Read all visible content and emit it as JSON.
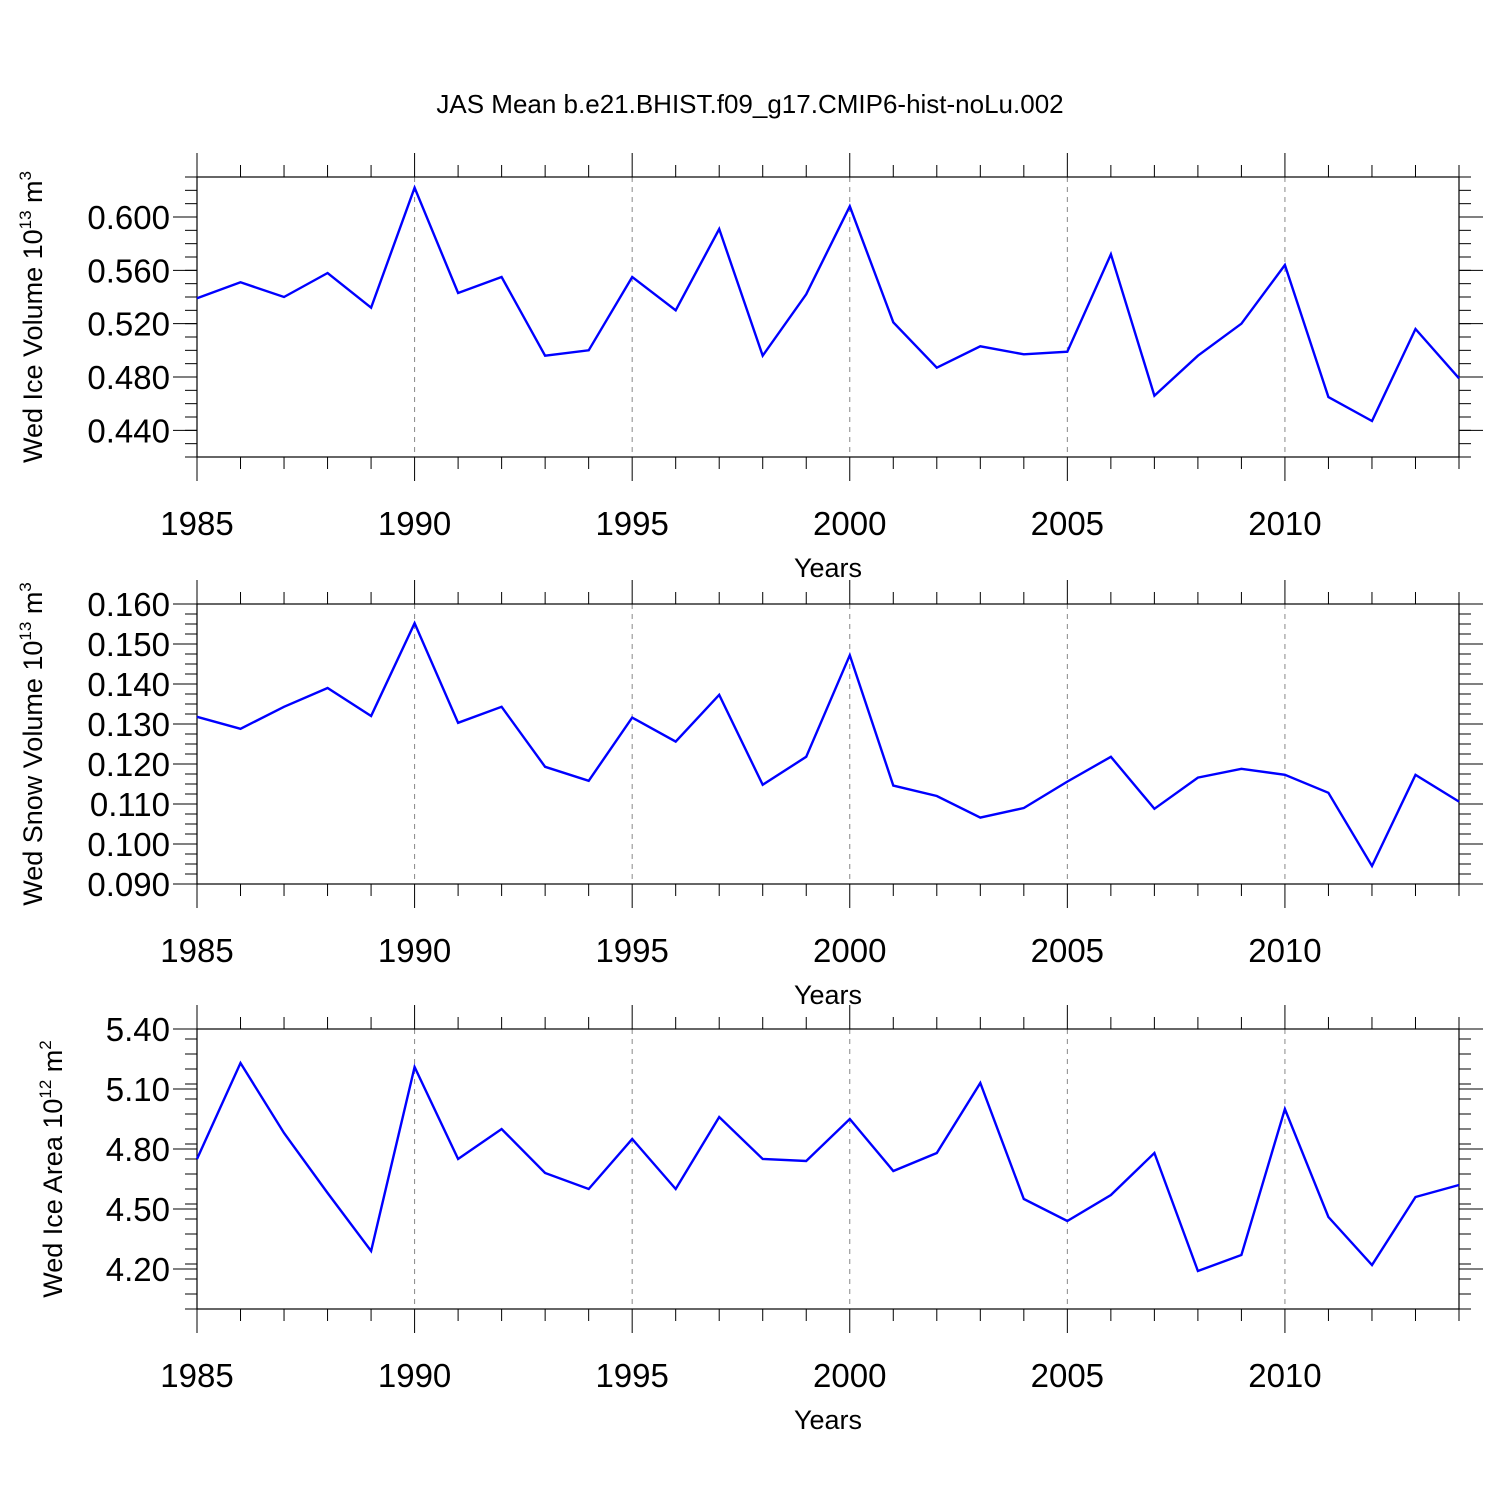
{
  "title": "JAS Mean b.e21.BHIST.f09_g17.CMIP6-hist-noLu.002",
  "line_color": "#0000ff",
  "chart_data": [
    {
      "type": "line",
      "xlabel": "Years",
      "ylabel": {
        "prefix": "Wed Ice Volume 10",
        "exponent": "13",
        "unit": " m",
        "unit_exponent": "3"
      },
      "xlim": [
        1985,
        2014
      ],
      "ylim": [
        0.42,
        0.63
      ],
      "xticks": [
        "1985",
        "1990",
        "1995",
        "2000",
        "2005",
        "2010"
      ],
      "yticks": [
        "0.440",
        "0.480",
        "0.520",
        "0.560",
        "0.600"
      ],
      "x": [
        1985,
        1986,
        1987,
        1988,
        1989,
        1990,
        1991,
        1992,
        1993,
        1994,
        1995,
        1996,
        1997,
        1998,
        1999,
        2000,
        2001,
        2002,
        2003,
        2004,
        2005,
        2006,
        2007,
        2008,
        2009,
        2010,
        2011,
        2012,
        2013,
        2014
      ],
      "series": [
        {
          "values": [
            0.539,
            0.551,
            0.54,
            0.558,
            0.532,
            0.622,
            0.543,
            0.555,
            0.496,
            0.5,
            0.555,
            0.53,
            0.591,
            0.496,
            0.542,
            0.608,
            0.521,
            0.487,
            0.503,
            0.497,
            0.499,
            0.572,
            0.466,
            0.496,
            0.52,
            0.564,
            0.465,
            0.447,
            0.516,
            0.479
          ]
        }
      ]
    },
    {
      "type": "line",
      "xlabel": "Years",
      "ylabel": {
        "prefix": "Wed Snow Volume 10",
        "exponent": "13",
        "unit": " m",
        "unit_exponent": "3"
      },
      "xlim": [
        1985,
        2014
      ],
      "ylim": [
        0.09,
        0.16
      ],
      "xticks": [
        "1985",
        "1990",
        "1995",
        "2000",
        "2005",
        "2010"
      ],
      "yticks": [
        "0.090",
        "0.100",
        "0.110",
        "0.120",
        "0.130",
        "0.140",
        "0.150",
        "0.160"
      ],
      "x": [
        1985,
        1986,
        1987,
        1988,
        1989,
        1990,
        1991,
        1992,
        1993,
        1994,
        1995,
        1996,
        1997,
        1998,
        1999,
        2000,
        2001,
        2002,
        2003,
        2004,
        2005,
        2006,
        2007,
        2008,
        2009,
        2010,
        2011,
        2012,
        2013,
        2014
      ],
      "series": [
        {
          "values": [
            0.1318,
            0.1288,
            0.1343,
            0.139,
            0.132,
            0.1552,
            0.1303,
            0.1343,
            0.1193,
            0.1158,
            0.1316,
            0.1256,
            0.1373,
            0.1148,
            0.1218,
            0.1472,
            0.1146,
            0.112,
            0.1066,
            0.109,
            0.1156,
            0.1218,
            0.1088,
            0.1166,
            0.1188,
            0.1173,
            0.1128,
            0.0945,
            0.1173,
            0.1106
          ]
        }
      ]
    },
    {
      "type": "line",
      "xlabel": "Years",
      "ylabel": {
        "prefix": "Wed Ice Area 10",
        "exponent": "12",
        "unit": " m",
        "unit_exponent": "2"
      },
      "xlim": [
        1985,
        2014
      ],
      "ylim": [
        4.0,
        5.4
      ],
      "xticks": [
        "1985",
        "1990",
        "1995",
        "2000",
        "2005",
        "2010"
      ],
      "yticks": [
        "4.20",
        "4.50",
        "4.80",
        "5.10",
        "5.40"
      ],
      "x": [
        1985,
        1986,
        1987,
        1988,
        1989,
        1990,
        1991,
        1992,
        1993,
        1994,
        1995,
        1996,
        1997,
        1998,
        1999,
        2000,
        2001,
        2002,
        2003,
        2004,
        2005,
        2006,
        2007,
        2008,
        2009,
        2010,
        2011,
        2012,
        2013,
        2014
      ],
      "series": [
        {
          "values": [
            4.75,
            5.23,
            4.88,
            4.58,
            4.29,
            5.21,
            4.75,
            4.9,
            4.68,
            4.6,
            4.85,
            4.6,
            4.96,
            4.75,
            4.74,
            4.95,
            4.69,
            4.78,
            5.13,
            4.55,
            4.44,
            4.57,
            4.78,
            4.19,
            4.27,
            5.0,
            4.46,
            4.22,
            4.56,
            4.62
          ]
        }
      ]
    }
  ]
}
